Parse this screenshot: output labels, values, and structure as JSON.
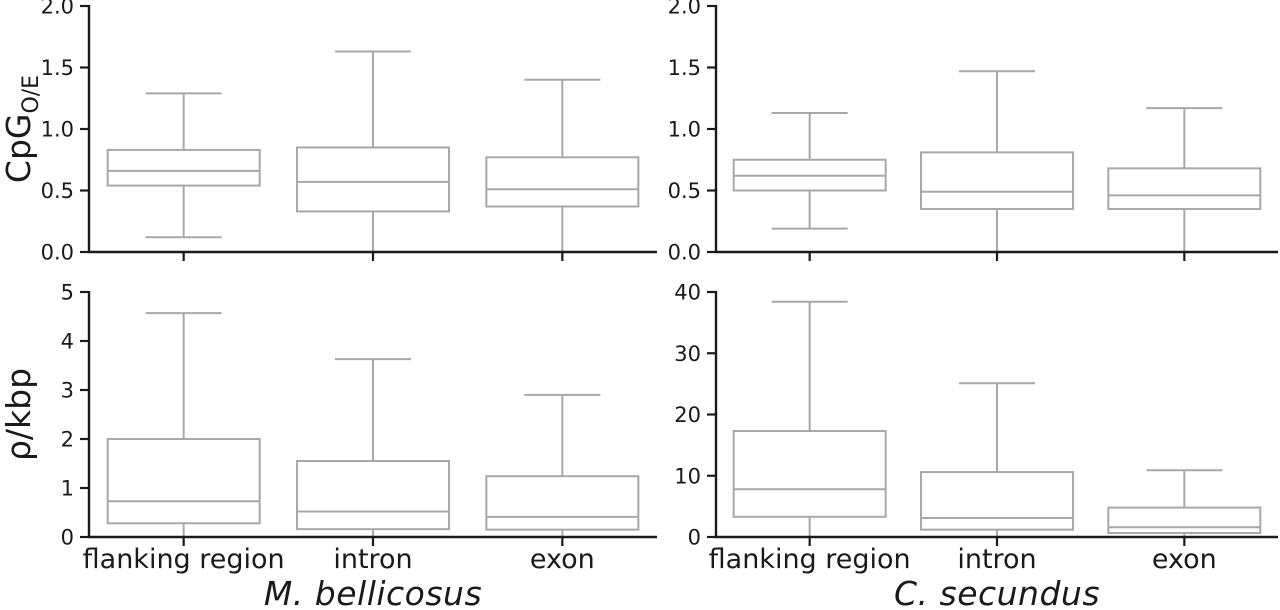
{
  "figure": {
    "columns": [
      {
        "species": "M. bellicosus"
      },
      {
        "species": "C. secundus"
      }
    ]
  },
  "colors": {
    "box_stroke": "#a8a8a8",
    "box_fill": "#ffffff",
    "axis": "#1a1a1a",
    "text": "#1a1a1a",
    "background": "#ffffff"
  },
  "chart_data": [
    {
      "id": "cpg-oe-m-bellicosus",
      "type": "box",
      "position": "top-left",
      "ylabel_main": "CpG",
      "ylabel_sub": "O/E",
      "ylim": [
        0.0,
        2.0
      ],
      "yticks": [
        0.0,
        0.5,
        1.0,
        1.5,
        2.0
      ],
      "ytick_labels": [
        "0.0",
        "0.5",
        "1.0",
        "1.5",
        "2.0"
      ],
      "grid": false,
      "show_xticklabels": false,
      "categories": [
        "flanking region",
        "intron",
        "exon"
      ],
      "boxes": [
        {
          "category": "flanking region",
          "whislo": 0.12,
          "q1": 0.54,
          "med": 0.66,
          "q3": 0.83,
          "whishi": 1.29
        },
        {
          "category": "intron",
          "whislo": 0.0,
          "q1": 0.33,
          "med": 0.57,
          "q3": 0.85,
          "whishi": 1.63
        },
        {
          "category": "exon",
          "whislo": 0.0,
          "q1": 0.37,
          "med": 0.51,
          "q3": 0.77,
          "whishi": 1.4
        }
      ]
    },
    {
      "id": "cpg-oe-c-secundus",
      "type": "box",
      "position": "top-right",
      "ylabel_main": "",
      "ylabel_sub": "",
      "ylim": [
        0.0,
        2.0
      ],
      "yticks": [
        0.0,
        0.5,
        1.0,
        1.5,
        2.0
      ],
      "ytick_labels": [
        "0.0",
        "0.5",
        "1.0",
        "1.5",
        "2.0"
      ],
      "grid": false,
      "show_xticklabels": false,
      "categories": [
        "flanking region",
        "intron",
        "exon"
      ],
      "boxes": [
        {
          "category": "flanking region",
          "whislo": 0.19,
          "q1": 0.5,
          "med": 0.62,
          "q3": 0.75,
          "whishi": 1.13
        },
        {
          "category": "intron",
          "whislo": 0.0,
          "q1": 0.35,
          "med": 0.49,
          "q3": 0.81,
          "whishi": 1.47
        },
        {
          "category": "exon",
          "whislo": 0.0,
          "q1": 0.35,
          "med": 0.46,
          "q3": 0.68,
          "whishi": 1.17
        }
      ]
    },
    {
      "id": "rho-kbp-m-bellicosus",
      "type": "box",
      "position": "bottom-left",
      "ylabel_main": "ρ/kbp",
      "ylabel_sub": "",
      "ylim": [
        0,
        5
      ],
      "yticks": [
        0,
        1,
        2,
        3,
        4,
        5
      ],
      "ytick_labels": [
        "0",
        "1",
        "2",
        "3",
        "4",
        "5"
      ],
      "grid": false,
      "show_xticklabels": true,
      "categories": [
        "flanking region",
        "intron",
        "exon"
      ],
      "boxes": [
        {
          "category": "flanking region",
          "whislo": 0,
          "q1": 0.28,
          "med": 0.73,
          "q3": 2.0,
          "whishi": 4.57
        },
        {
          "category": "intron",
          "whislo": 0,
          "q1": 0.16,
          "med": 0.52,
          "q3": 1.55,
          "whishi": 3.63
        },
        {
          "category": "exon",
          "whislo": 0,
          "q1": 0.15,
          "med": 0.41,
          "q3": 1.24,
          "whishi": 2.9
        }
      ]
    },
    {
      "id": "rho-kbp-c-secundus",
      "type": "box",
      "position": "bottom-right",
      "ylabel_main": "",
      "ylabel_sub": "",
      "ylim": [
        0,
        40
      ],
      "yticks": [
        0,
        10,
        20,
        30,
        40
      ],
      "ytick_labels": [
        "0",
        "10",
        "20",
        "30",
        "40"
      ],
      "grid": false,
      "show_xticklabels": true,
      "categories": [
        "flanking region",
        "intron",
        "exon"
      ],
      "boxes": [
        {
          "category": "flanking region",
          "whislo": 0,
          "q1": 3.3,
          "med": 7.8,
          "q3": 17.3,
          "whishi": 38.4
        },
        {
          "category": "intron",
          "whislo": 0,
          "q1": 1.2,
          "med": 3.1,
          "q3": 10.6,
          "whishi": 25.1
        },
        {
          "category": "exon",
          "whislo": 0,
          "q1": 0.65,
          "med": 1.6,
          "q3": 4.8,
          "whishi": 10.9
        }
      ]
    }
  ]
}
